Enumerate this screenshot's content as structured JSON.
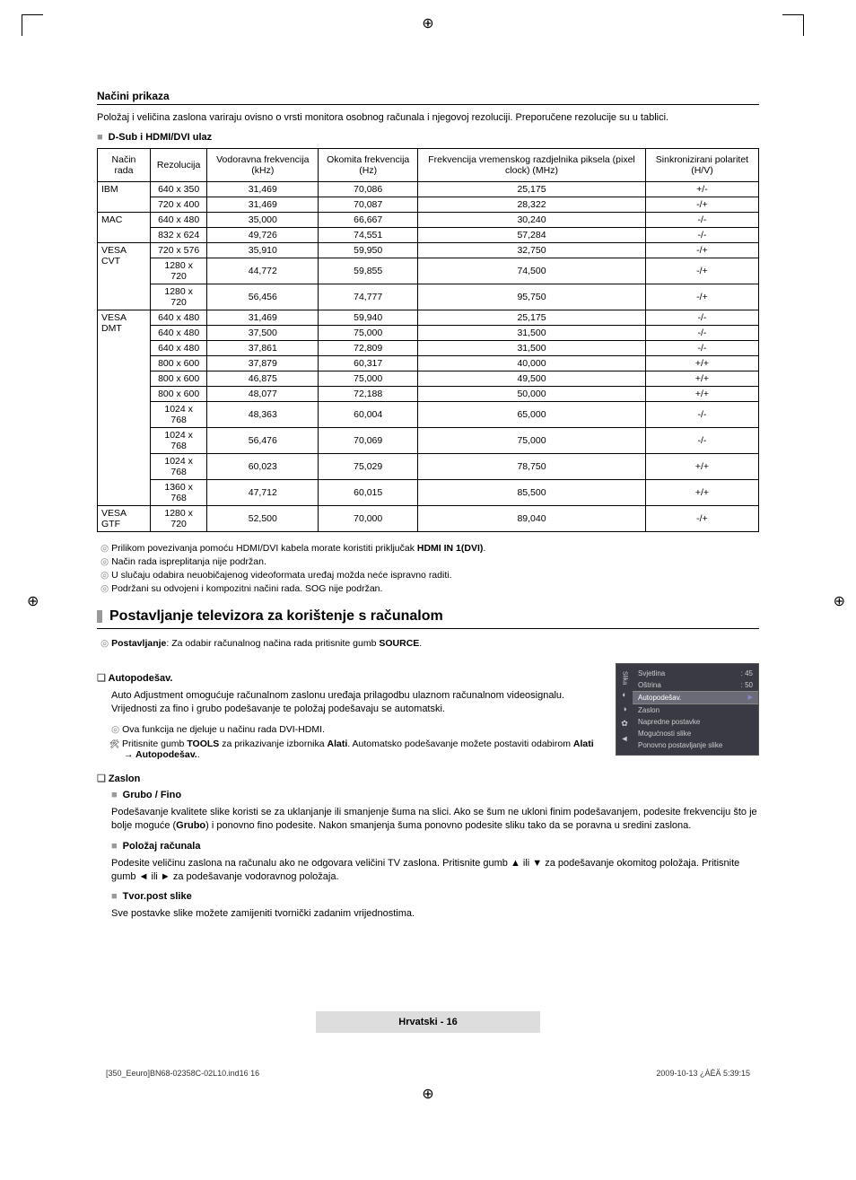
{
  "registration_mark": "⊕",
  "header": {
    "title": "Načini prikaza",
    "intro": "Položaj i veličina zaslona variraju ovisno o vrsti monitora osobnog računala i njegovoj rezoluciji. Preporučene rezolucije su u tablici.",
    "sub_heading": "D-Sub i HDMI/DVI ulaz"
  },
  "table": {
    "columns": [
      "Način rada",
      "Rezolucija",
      "Vodoravna frekvencija (kHz)",
      "Okomita frekvencija (Hz)",
      "Frekvencija vremenskog razdjelnika piksela (pixel clock) (MHz)",
      "Sinkronizirani polaritet (H/V)"
    ],
    "groups": [
      {
        "name": "IBM",
        "rows": [
          [
            "640 x 350",
            "31,469",
            "70,086",
            "25,175",
            "+/-"
          ],
          [
            "720 x 400",
            "31,469",
            "70,087",
            "28,322",
            "-/+"
          ]
        ]
      },
      {
        "name": "MAC",
        "rows": [
          [
            "640 x 480",
            "35,000",
            "66,667",
            "30,240",
            "-/-"
          ],
          [
            "832 x 624",
            "49,726",
            "74,551",
            "57,284",
            "-/-"
          ]
        ]
      },
      {
        "name": "VESA CVT",
        "rows": [
          [
            "720 x 576",
            "35,910",
            "59,950",
            "32,750",
            "-/+"
          ],
          [
            "1280 x 720",
            "44,772",
            "59,855",
            "74,500",
            "-/+"
          ],
          [
            "1280 x 720",
            "56,456",
            "74,777",
            "95,750",
            "-/+"
          ]
        ]
      },
      {
        "name": "VESA DMT",
        "rows": [
          [
            "640 x 480",
            "31,469",
            "59,940",
            "25,175",
            "-/-"
          ],
          [
            "640 x 480",
            "37,500",
            "75,000",
            "31,500",
            "-/-"
          ],
          [
            "640 x 480",
            "37,861",
            "72,809",
            "31,500",
            "-/-"
          ],
          [
            "800 x 600",
            "37,879",
            "60,317",
            "40,000",
            "+/+"
          ],
          [
            "800 x 600",
            "46,875",
            "75,000",
            "49,500",
            "+/+"
          ],
          [
            "800 x 600",
            "48,077",
            "72,188",
            "50,000",
            "+/+"
          ],
          [
            "1024 x 768",
            "48,363",
            "60,004",
            "65,000",
            "-/-"
          ],
          [
            "1024 x 768",
            "56,476",
            "70,069",
            "75,000",
            "-/-"
          ],
          [
            "1024 x 768",
            "60,023",
            "75,029",
            "78,750",
            "+/+"
          ],
          [
            "1360 x 768",
            "47,712",
            "60,015",
            "85,500",
            "+/+"
          ]
        ]
      },
      {
        "name": "VESA GTF",
        "rows": [
          [
            "1280 x 720",
            "52,500",
            "70,000",
            "89,040",
            "-/+"
          ]
        ]
      }
    ]
  },
  "notes": [
    "Prilikom povezivanja pomoću HDMI/DVI kabela morate koristiti priključak <b>HDMI IN 1(DVI)</b>.",
    "Način rada ispreplitanja nije podržan.",
    "U slučaju odabira neuobičajenog videoformata uređaj možda neće ispravno raditi.",
    "Podržani su odvojeni i kompozitni načini rada. SOG nije podržan."
  ],
  "section2": {
    "title": "Postavljanje televizora za korištenje s računalom",
    "setup_note": "<b>Postavljanje</b>: Za odabir računalnog načina rada pritisnite gumb <b>SOURCE</b>.",
    "auto": {
      "title": "Autopodešav.",
      "body": "Auto Adjustment omogućuje računalnom zaslonu uređaja prilagodbu ulaznom računalnom videosignalu. Vrijednosti za fino i grubo podešavanje te položaj podešavaju se automatski.",
      "n1": "Ova funkcija ne djeluje u načinu rada DVI-HDMI.",
      "n2": "Pritisnite gumb <b>TOOLS</b> za prikazivanje izbornika <b>Alati</b>. Automatsko podešavanje možete postaviti odabirom <b>Alati → Autopodešav.</b>."
    },
    "zaslon": {
      "title": "Zaslon",
      "grubo_title": "Grubo / Fino",
      "grubo_body": "Podešavanje kvalitete slike koristi se za uklanjanje ili smanjenje šuma na slici. Ako se šum ne ukloni finim podešavanjem, podesite frekvenciju što je bolje moguće (<b>Grubo</b>) i ponovno fino podesite. Nakon smanjenja šuma ponovno podesite sliku tako da se poravna u sredini zaslona.",
      "polozaj_title": "Položaj računala",
      "polozaj_body": "Podesite veličinu zaslona na računalu ako ne odgovara veličini TV zaslona. Pritisnite gumb ▲ ili ▼ za podešavanje okomitog položaja. Pritisnite gumb ◄ ili ► za podešavanje vodoravnog položaja.",
      "tvor_title": "Tvor.post slike",
      "tvor_body": "Sve postavke slike možete zamijeniti tvornički zadanim vrijednostima."
    }
  },
  "osd": {
    "rows": [
      {
        "label": "Svjetlina",
        "val": ": 45"
      },
      {
        "label": "Oštrina",
        "val": ": 50"
      },
      {
        "label": "Autopodešav.",
        "val": "",
        "active": true
      },
      {
        "label": "Zaslon",
        "val": ""
      },
      {
        "label": "Napredne postavke",
        "val": ""
      },
      {
        "label": "Mogućnosti slike",
        "val": ""
      },
      {
        "label": "Ponovno postavljanje slike",
        "val": ""
      }
    ],
    "side_label": "Slika"
  },
  "footer": {
    "page": "Hrvatski - 16",
    "left": "[350_Eeuro]BN68-02358C-02L10.ind16   16",
    "right": "2009-10-13   ¿ÀÈÄ 5:39:15"
  }
}
